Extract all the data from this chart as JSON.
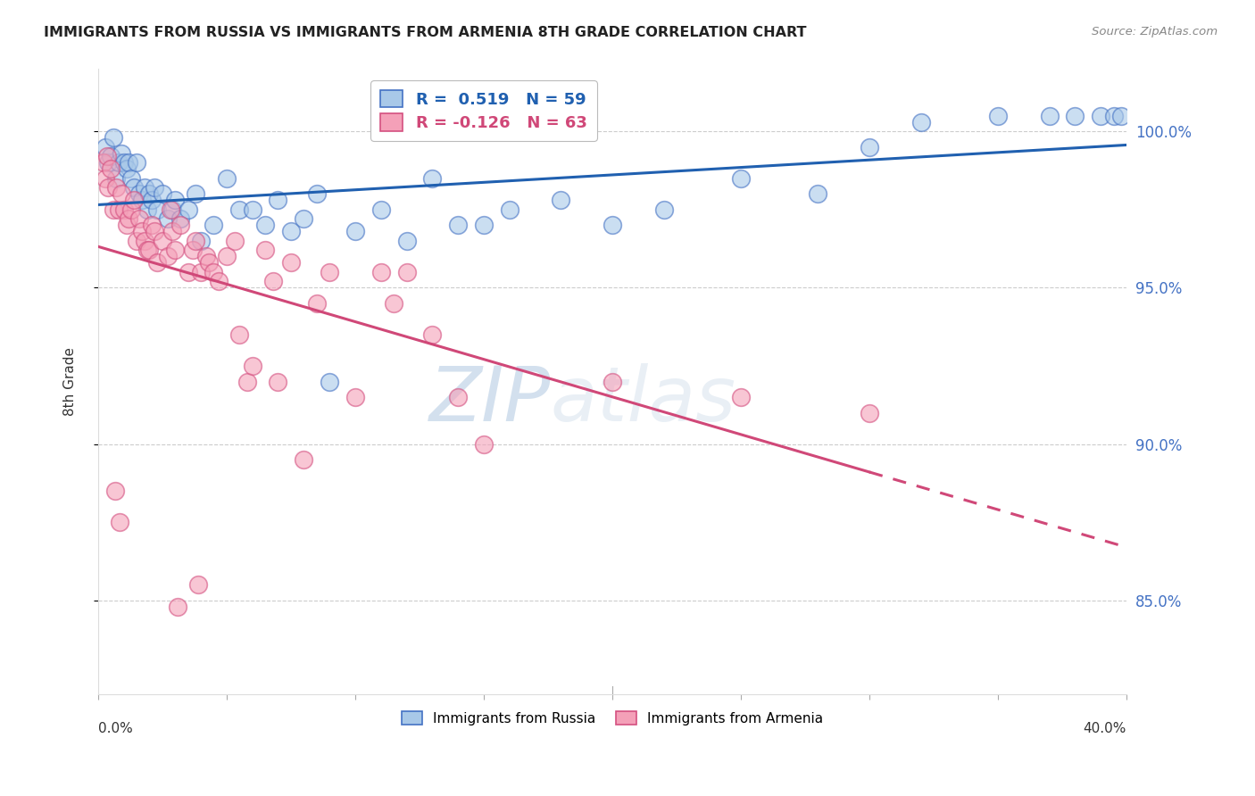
{
  "title": "IMMIGRANTS FROM RUSSIA VS IMMIGRANTS FROM ARMENIA 8TH GRADE CORRELATION CHART",
  "source": "Source: ZipAtlas.com",
  "ylabel": "8th Grade",
  "y_ticks": [
    85.0,
    90.0,
    95.0,
    100.0
  ],
  "y_tick_labels": [
    "85.0%",
    "90.0%",
    "95.0%",
    "100.0%"
  ],
  "x_range": [
    0.0,
    40.0
  ],
  "y_range": [
    82.0,
    102.0
  ],
  "russia_R": 0.519,
  "russia_N": 59,
  "armenia_R": -0.126,
  "armenia_N": 63,
  "russia_color": "#a8c8e8",
  "russia_edge_color": "#4472c4",
  "armenia_color": "#f4a0b8",
  "armenia_edge_color": "#d45080",
  "russia_line_color": "#2060b0",
  "armenia_line_color": "#d04878",
  "legend_label_russia": "Immigrants from Russia",
  "legend_label_armenia": "Immigrants from Armenia",
  "watermark_zip": "ZIP",
  "watermark_atlas": "atlas",
  "russia_x": [
    0.3,
    0.4,
    0.5,
    0.6,
    0.7,
    0.8,
    0.9,
    1.0,
    1.1,
    1.2,
    1.3,
    1.4,
    1.5,
    1.6,
    1.7,
    1.8,
    1.9,
    2.0,
    2.1,
    2.2,
    2.3,
    2.5,
    2.7,
    2.9,
    3.0,
    3.2,
    3.5,
    3.8,
    4.0,
    4.5,
    5.0,
    5.5,
    6.0,
    6.5,
    7.0,
    7.5,
    8.0,
    8.5,
    9.0,
    10.0,
    11.0,
    12.0,
    13.0,
    14.0,
    15.0,
    16.0,
    18.0,
    20.0,
    22.0,
    25.0,
    28.0,
    30.0,
    32.0,
    35.0,
    37.0,
    38.0,
    39.0,
    39.5,
    39.8
  ],
  "russia_y": [
    99.5,
    99.0,
    99.2,
    99.8,
    98.5,
    99.0,
    99.3,
    99.0,
    98.8,
    99.0,
    98.5,
    98.2,
    99.0,
    98.0,
    97.8,
    98.2,
    97.5,
    98.0,
    97.8,
    98.2,
    97.5,
    98.0,
    97.2,
    97.5,
    97.8,
    97.2,
    97.5,
    98.0,
    96.5,
    97.0,
    98.5,
    97.5,
    97.5,
    97.0,
    97.8,
    96.8,
    97.2,
    98.0,
    92.0,
    96.8,
    97.5,
    96.5,
    98.5,
    97.0,
    97.0,
    97.5,
    97.8,
    97.0,
    97.5,
    98.5,
    98.0,
    99.5,
    100.3,
    100.5,
    100.5,
    100.5,
    100.5,
    100.5,
    100.5
  ],
  "armenia_x": [
    0.2,
    0.3,
    0.35,
    0.4,
    0.5,
    0.6,
    0.65,
    0.7,
    0.8,
    0.85,
    0.9,
    1.0,
    1.1,
    1.2,
    1.3,
    1.4,
    1.5,
    1.6,
    1.7,
    1.8,
    1.9,
    2.0,
    2.1,
    2.2,
    2.3,
    2.5,
    2.7,
    2.8,
    2.9,
    3.0,
    3.1,
    3.2,
    3.5,
    3.7,
    3.8,
    3.9,
    4.0,
    4.2,
    4.3,
    4.5,
    4.7,
    5.0,
    5.3,
    5.5,
    5.8,
    6.0,
    6.5,
    6.8,
    7.0,
    7.5,
    8.0,
    8.5,
    9.0,
    10.0,
    11.0,
    11.5,
    12.0,
    13.0,
    14.0,
    15.0,
    20.0,
    25.0,
    30.0
  ],
  "armenia_y": [
    99.0,
    98.5,
    99.2,
    98.2,
    98.8,
    97.5,
    88.5,
    98.2,
    97.5,
    87.5,
    98.0,
    97.5,
    97.0,
    97.2,
    97.5,
    97.8,
    96.5,
    97.2,
    96.8,
    96.5,
    96.2,
    96.2,
    97.0,
    96.8,
    95.8,
    96.5,
    96.0,
    97.5,
    96.8,
    96.2,
    84.8,
    97.0,
    95.5,
    96.2,
    96.5,
    85.5,
    95.5,
    96.0,
    95.8,
    95.5,
    95.2,
    96.0,
    96.5,
    93.5,
    92.0,
    92.5,
    96.2,
    95.2,
    92.0,
    95.8,
    89.5,
    94.5,
    95.5,
    91.5,
    95.5,
    94.5,
    95.5,
    93.5,
    91.5,
    90.0,
    92.0,
    91.5,
    91.0
  ]
}
